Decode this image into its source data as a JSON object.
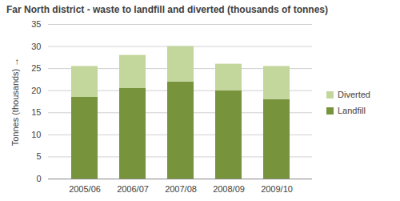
{
  "chart_data": {
    "type": "bar",
    "stacked": true,
    "title": "Far North district - waste to landfill and diverted (thousands of tonnes)",
    "y_label": "Tonnes (thousands)",
    "categories": [
      "2005/06",
      "2006/07",
      "2007/08",
      "2008/09",
      "2009/10"
    ],
    "series": [
      {
        "name": "Landfill",
        "color": "#77933c",
        "values": [
          18.5,
          20.5,
          22,
          20,
          18
        ]
      },
      {
        "name": "Diverted",
        "color": "#c3d69b",
        "values": [
          7,
          7.5,
          8,
          6,
          7.5
        ]
      }
    ],
    "ylim": [
      0,
      35
    ],
    "yticks": [
      0,
      5,
      10,
      15,
      20,
      25,
      30,
      35
    ],
    "grid": true,
    "legend": "right"
  }
}
